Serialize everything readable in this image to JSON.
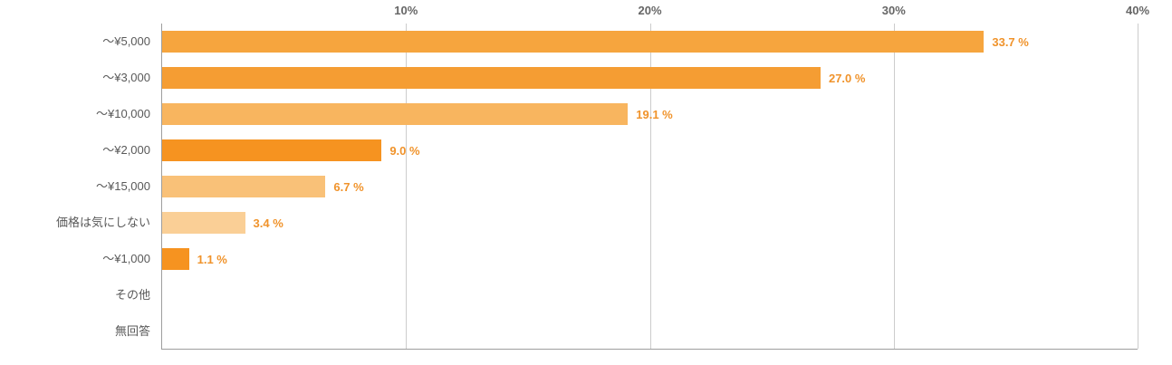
{
  "chart_data": {
    "type": "bar",
    "orientation": "horizontal",
    "title": "",
    "xlabel": "",
    "ylabel": "",
    "x_axis": {
      "max": 40,
      "tick_values": [
        10,
        20,
        30,
        40
      ],
      "tick_labels": [
        "10%",
        "20%",
        "30%",
        "40%"
      ],
      "position": "top",
      "grid": true
    },
    "categories": [
      "～¥5,000",
      "～¥3,000",
      "～¥10,000",
      "～¥2,000",
      "～¥15,000",
      "価格は気にしない",
      "～¥1,000",
      "その他",
      "無回答"
    ],
    "values": [
      33.7,
      27.0,
      19.1,
      9.0,
      6.7,
      3.4,
      1.1,
      0,
      0
    ],
    "rows": [
      {
        "label": "～¥5,000",
        "value": 33.7,
        "value_label": "33.7 %",
        "color": "#f6a53e"
      },
      {
        "label": "～¥3,000",
        "value": 27.0,
        "value_label": "27.0 %",
        "color": "#f59d33"
      },
      {
        "label": "～¥10,000",
        "value": 19.1,
        "value_label": "19.1 %",
        "color": "#f8b55f"
      },
      {
        "label": "～¥2,000",
        "value": 9.0,
        "value_label": "9.0 %",
        "color": "#f69320"
      },
      {
        "label": "～¥15,000",
        "value": 6.7,
        "value_label": "6.7 %",
        "color": "#f9c178"
      },
      {
        "label": "価格は気にしない",
        "value": 3.4,
        "value_label": "3.4 %",
        "color": "#facf96"
      },
      {
        "label": "～¥1,000",
        "value": 1.1,
        "value_label": "1.1 %",
        "color": "#f69320"
      },
      {
        "label": "その他",
        "value": 0,
        "value_label": "",
        "color": "#f6a53e"
      },
      {
        "label": "無回答",
        "value": 0,
        "value_label": "",
        "color": "#f6a53e"
      }
    ],
    "style": {
      "grid_color": "#cccccc",
      "axis_color": "#9e9e9e",
      "label_color": "#595959",
      "tick_color": "#666666",
      "value_label_color": "#f0932b",
      "background": "#ffffff"
    }
  }
}
